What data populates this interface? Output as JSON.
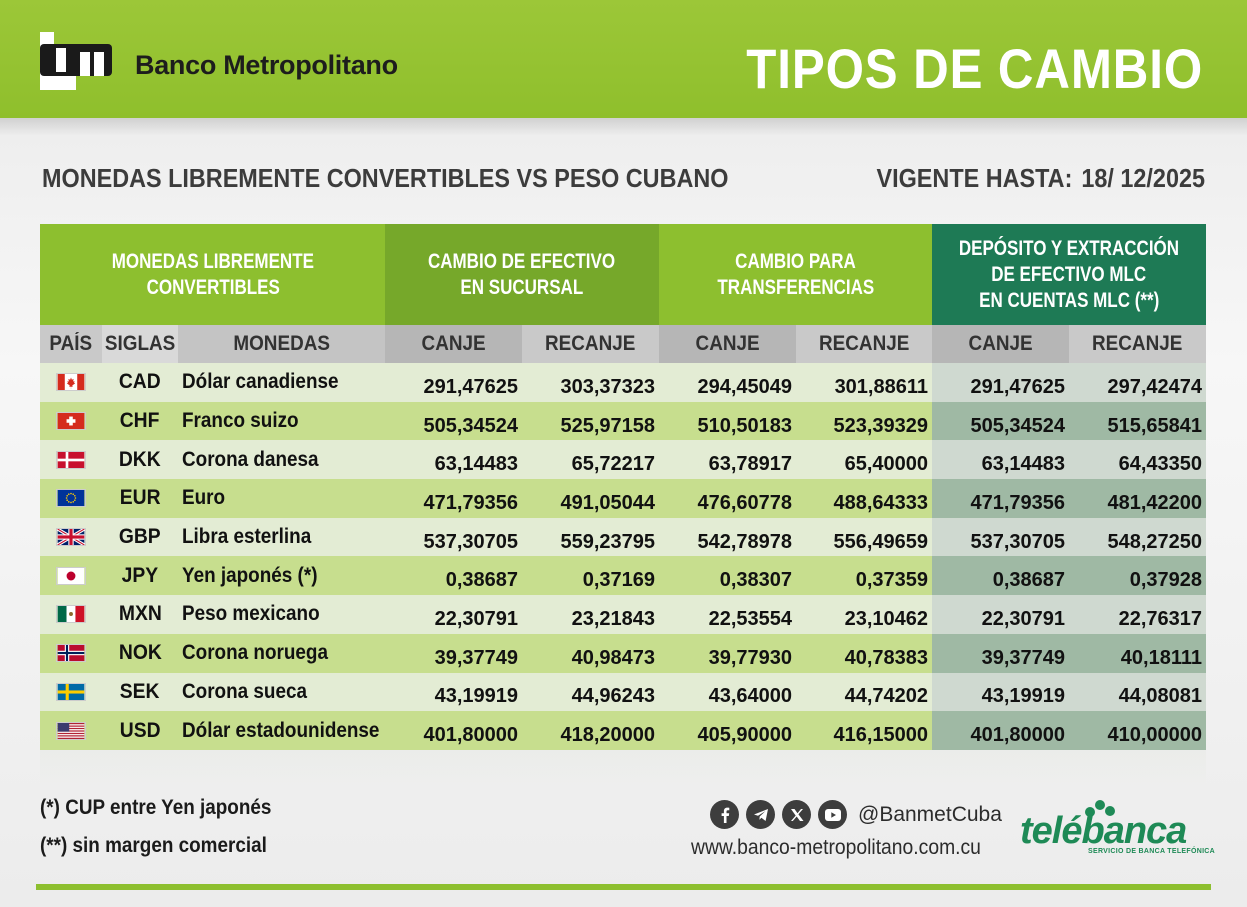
{
  "brand": {
    "name": "Banco Metropolitano"
  },
  "title": "TIPOS DE CAMBIO",
  "subtitle": "MONEDAS LIBREMENTE CONVERTIBLES VS PESO CUBANO",
  "vigente": {
    "label": "VIGENTE HASTA:",
    "date": "18/ 12/2025"
  },
  "table": {
    "group_headers": {
      "monedas": "MONEDAS LIBREMENTE CONVERTIBLES",
      "efectivo": "CAMBIO DE EFECTIVO EN SUCURSAL",
      "transferencias": "CAMBIO PARA TRANSFERENCIAS",
      "mlc": "DEPÓSITO Y EXTRACCIÓN DE EFECTIVO MLC EN CUENTAS MLC (**)"
    },
    "group_headers_lines": {
      "monedas": [
        "MONEDAS LIBREMENTE",
        "CONVERTIBLES"
      ],
      "efectivo": [
        "CAMBIO DE EFECTIVO",
        "EN SUCURSAL"
      ],
      "transferencias": [
        "CAMBIO PARA",
        "TRANSFERENCIAS"
      ],
      "mlc": [
        "DEPÓSITO Y EXTRACCIÓN",
        "DE EFECTIVO MLC",
        "EN CUENTAS MLC (**)"
      ]
    },
    "columns": [
      "PAÍS",
      "SIGLAS",
      "MONEDAS",
      "CANJE",
      "RECANJE",
      "CANJE",
      "RECANJE",
      "CANJE",
      "RECANJE"
    ],
    "rows": [
      {
        "flag": "canada-flag-icon",
        "code": "CAD",
        "name": "Dólar canadiense",
        "values": [
          "291,47625",
          "303,37323",
          "294,45049",
          "301,88611",
          "291,47625",
          "297,42474"
        ]
      },
      {
        "flag": "switzerland-flag-icon",
        "code": "CHF",
        "name": "Franco suizo",
        "values": [
          "505,34524",
          "525,97158",
          "510,50183",
          "523,39329",
          "505,34524",
          "515,65841"
        ]
      },
      {
        "flag": "denmark-flag-icon",
        "code": "DKK",
        "name": "Corona danesa",
        "values": [
          "63,14483",
          "65,72217",
          "63,78917",
          "65,40000",
          "63,14483",
          "64,43350"
        ]
      },
      {
        "flag": "eu-flag-icon",
        "code": "EUR",
        "name": "Euro",
        "values": [
          "471,79356",
          "491,05044",
          "476,60778",
          "488,64333",
          "471,79356",
          "481,42200"
        ]
      },
      {
        "flag": "uk-flag-icon",
        "code": "GBP",
        "name": "Libra esterlina",
        "values": [
          "537,30705",
          "559,23795",
          "542,78978",
          "556,49659",
          "537,30705",
          "548,27250"
        ]
      },
      {
        "flag": "japan-flag-icon",
        "code": "JPY",
        "name": "Yen japonés (*)",
        "values": [
          "0,38687",
          "0,37169",
          "0,38307",
          "0,37359",
          "0,38687",
          "0,37928"
        ]
      },
      {
        "flag": "mexico-flag-icon",
        "code": "MXN",
        "name": "Peso mexicano",
        "values": [
          "22,30791",
          "23,21843",
          "22,53554",
          "23,10462",
          "22,30791",
          "22,76317"
        ]
      },
      {
        "flag": "norway-flag-icon",
        "code": "NOK",
        "name": "Corona noruega",
        "values": [
          "39,37749",
          "40,98473",
          "39,77930",
          "40,78383",
          "39,37749",
          "40,18111"
        ]
      },
      {
        "flag": "sweden-flag-icon",
        "code": "SEK",
        "name": "Corona sueca",
        "values": [
          "43,19919",
          "44,96243",
          "43,64000",
          "44,74202",
          "43,19919",
          "44,08081"
        ]
      },
      {
        "flag": "usa-flag-icon",
        "code": "USD",
        "name": "Dólar estadounidense",
        "values": [
          "401,80000",
          "418,20000",
          "405,90000",
          "416,15000",
          "401,80000",
          "410,00000"
        ]
      }
    ]
  },
  "notes": {
    "note1": "(*) CUP entre Yen japonés",
    "note2": "(**) sin margen comercial"
  },
  "social": {
    "icons": [
      "facebook-icon",
      "telegram-icon",
      "x-icon",
      "youtube-icon"
    ],
    "handle": "@BanmetCuba"
  },
  "website": "www.banco-metropolitano.com.cu",
  "telebanca": {
    "name": "telébanca",
    "tagline": "SERVICIO DE BANCA TELEFÓNICA"
  },
  "colors": {
    "brand_green": "#8dbf2f",
    "dark_green": "#1e7a55",
    "telebanca_green": "#1e8a56"
  }
}
